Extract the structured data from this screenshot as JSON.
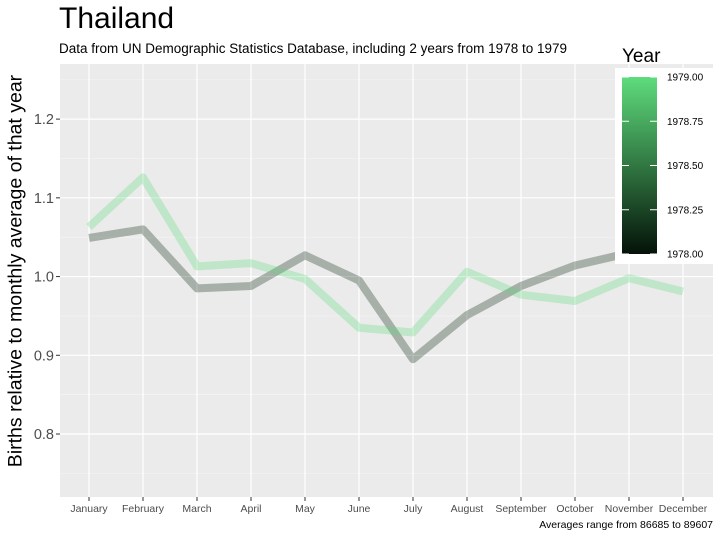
{
  "chart_data": {
    "type": "line",
    "title": "Thailand",
    "subtitle": "Data from UN Demographic Statistics Database, including 2 years from 1978 to 1979",
    "caption": "Averages range from 86685 to 89607",
    "xlabel": "",
    "ylabel": "Births relative to monthly average of that year",
    "categories": [
      "January",
      "February",
      "March",
      "April",
      "May",
      "June",
      "July",
      "August",
      "September",
      "October",
      "November",
      "December"
    ],
    "ylim": [
      0.72,
      1.27
    ],
    "yticks": [
      "0.8",
      "0.9",
      "1.0",
      "1.1",
      "1.2"
    ],
    "series": [
      {
        "name": "1978",
        "color": "#0a2412",
        "opacity": 0.3,
        "values": [
          1.049,
          1.06,
          0.985,
          0.988,
          1.027,
          0.995,
          0.895,
          0.951,
          0.988,
          1.014,
          1.03,
          1.025
        ]
      },
      {
        "name": "1979",
        "color": "#5edc7c",
        "opacity": 0.3,
        "values": [
          1.063,
          1.126,
          1.013,
          1.017,
          0.997,
          0.935,
          0.929,
          1.006,
          0.977,
          0.969,
          0.998,
          0.981
        ]
      }
    ],
    "legend": {
      "title": "Year",
      "position": "right",
      "labels": [
        "1979.00",
        "1978.75",
        "1978.50",
        "1978.25",
        "1978.00"
      ],
      "gradient": [
        "#5edc7c",
        "#041208"
      ]
    },
    "grid": true
  }
}
